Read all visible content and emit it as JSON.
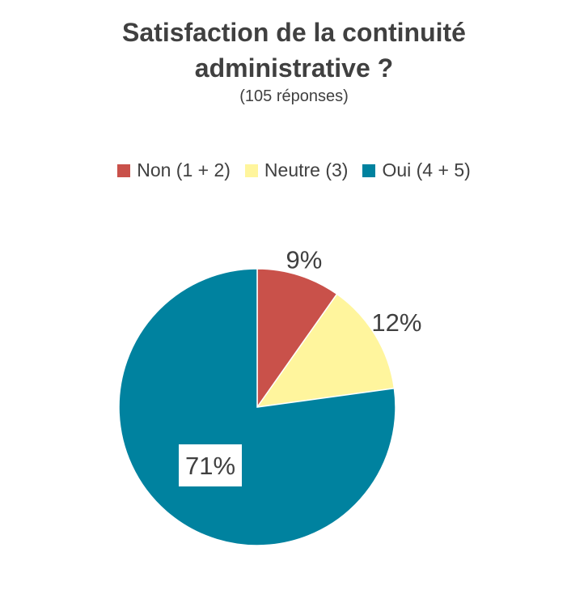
{
  "chart_data": {
    "type": "pie",
    "title": "Satisfaction de la continuité administrative ?",
    "title_lines": [
      "Satisfaction de la continuité",
      "administrative ?"
    ],
    "subtitle": "(105 réponses)",
    "legend_position": "top",
    "categories": [
      "Non (1 + 2)",
      "Neutre (3)",
      "Oui (4 + 5)"
    ],
    "values": [
      9,
      12,
      71
    ],
    "labels": [
      "9%",
      "12%",
      "71%"
    ],
    "colors": [
      "#C9514A",
      "#FFF59D",
      "#00829F"
    ]
  }
}
